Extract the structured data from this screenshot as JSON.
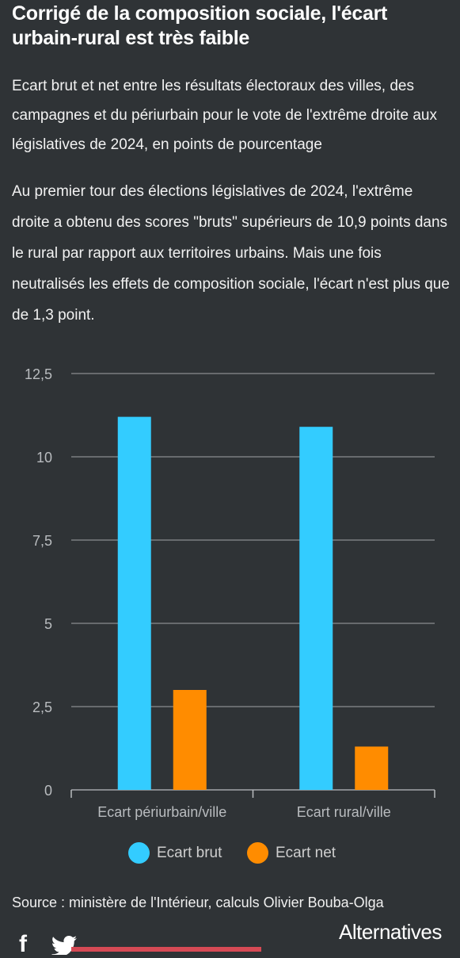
{
  "header": {
    "title": "Corrigé de la composition sociale, l'écart urbain-rural est très faible",
    "subtitle": "Ecart brut et net entre les résultats électoraux des villes, des campagnes et du périurbain pour le vote de l'extrême droite aux législatives de 2024, en points de pourcentage",
    "intro": "Au premier tour des élections législatives de 2024, l'extrême droite a obtenu des scores \"bruts\" supérieurs de 10,9 points dans le rural par rapport aux territoires urbains. Mais une fois neutralisés les effets de composition sociale, l'écart n'est plus que de 1,3 point."
  },
  "chart_data": {
    "type": "bar",
    "categories": [
      "Ecart périurbain/ville",
      "Ecart rural/ville"
    ],
    "series": [
      {
        "name": "Ecart brut",
        "values": [
          11.2,
          10.9
        ],
        "color": "#33ccff"
      },
      {
        "name": "Ecart net",
        "values": [
          3.0,
          1.3
        ],
        "color": "#ff8c00"
      }
    ],
    "ylim": [
      0,
      12.5
    ],
    "yticks": [
      0,
      2.5,
      5,
      7.5,
      10,
      12.5
    ],
    "ytick_labels": [
      "0",
      "2,5",
      "5",
      "7,5",
      "10",
      "12,5"
    ],
    "grid": true,
    "legend_position": "bottom"
  },
  "footer": {
    "source": "Source : ministère de l'Intérieur, calculs Olivier Bouba-Olga",
    "logo": "Alternatives",
    "social": [
      "facebook-icon",
      "twitter-icon"
    ]
  }
}
